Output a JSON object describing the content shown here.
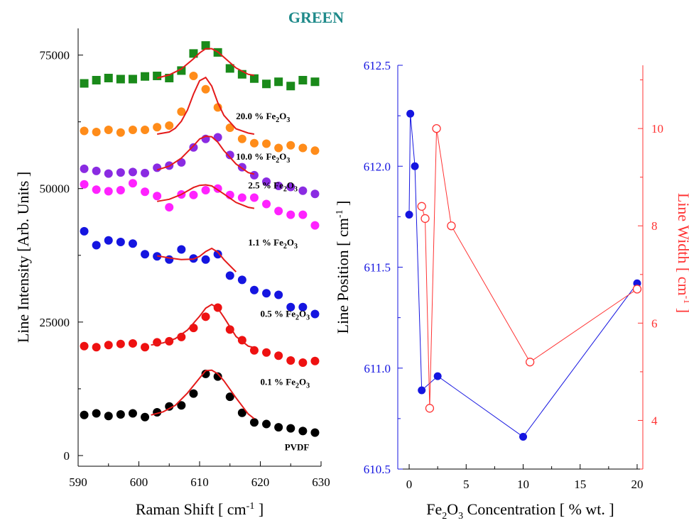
{
  "title": "GREEN",
  "chart_data": [
    {
      "type": "scatter",
      "xlabel": "Raman Shift [ cm⁻¹ ]",
      "ylabel": "Line Intensity [Arb. Units ]",
      "xlim": [
        590,
        630
      ],
      "ylim": [
        -2000,
        80000
      ],
      "xticks": [
        "590",
        "600",
        "610",
        "620",
        "630"
      ],
      "yticks": [
        "0",
        "25000",
        "50000",
        "75000"
      ],
      "grid": false,
      "series": [
        {
          "name": "PVDF",
          "color": "#000000",
          "marker": "circle",
          "x": [
            591,
            593,
            595,
            597,
            599,
            601,
            603,
            605,
            607,
            609,
            611,
            613,
            615,
            617,
            619,
            621,
            623,
            625,
            627,
            629,
            631
          ],
          "y": [
            7600,
            7900,
            7400,
            7700,
            7900,
            7200,
            8100,
            9200,
            9400,
            11600,
            15300,
            14800,
            11000,
            8000,
            6200,
            5900,
            5300,
            5100,
            4600,
            4300,
            4500
          ],
          "fit_x": [
            602,
            604,
            606,
            608,
            610,
            611,
            612,
            613,
            614,
            616,
            618,
            619
          ],
          "fit_y": [
            7600,
            8200,
            9400,
            11700,
            14500,
            15900,
            16000,
            15300,
            14000,
            10800,
            7800,
            6900
          ]
        },
        {
          "name": "0.1 % Fe2O3",
          "color": "#ee1111",
          "marker": "circle",
          "x": [
            591,
            593,
            595,
            597,
            599,
            601,
            603,
            605,
            607,
            609,
            611,
            613,
            615,
            617,
            619,
            621,
            623,
            625,
            627,
            629,
            631
          ],
          "y": [
            20500,
            20300,
            20700,
            20900,
            21000,
            20300,
            21200,
            21400,
            22200,
            23900,
            26000,
            27700,
            23600,
            21600,
            19700,
            19300,
            18700,
            17800,
            17400,
            17700,
            17700
          ],
          "fit_x": [
            602,
            604,
            606,
            608,
            610,
            611,
            612,
            613,
            614,
            616,
            618,
            619
          ],
          "fit_y": [
            20700,
            21100,
            21900,
            23500,
            26100,
            27600,
            28300,
            27600,
            25900,
            22300,
            20500,
            20200
          ]
        },
        {
          "name": "0.5 % Fe2O3",
          "color": "#1515e0",
          "marker": "circle",
          "x": [
            591,
            593,
            595,
            597,
            599,
            601,
            603,
            605,
            607,
            609,
            611,
            613,
            615,
            617,
            619,
            621,
            623,
            625,
            627,
            629,
            631
          ],
          "y": [
            42000,
            39400,
            40300,
            40000,
            39700,
            37700,
            37300,
            36700,
            38600,
            36900,
            36700,
            37700,
            33700,
            32900,
            31000,
            30400,
            30100,
            27800,
            27800,
            26500,
            27300
          ],
          "fit_x": [
            603,
            605,
            607,
            609,
            610,
            611,
            612,
            613,
            614,
            616
          ],
          "fit_y": [
            37400,
            37000,
            36700,
            36800,
            37300,
            38200,
            38800,
            38100,
            36700,
            34400
          ]
        },
        {
          "name": "1.1 % Fe2O3",
          "color": "#ff22ff",
          "marker": "circle",
          "x": [
            591,
            593,
            595,
            597,
            599,
            601,
            603,
            605,
            607,
            609,
            611,
            613,
            615,
            617,
            619,
            621,
            623,
            625,
            627,
            629,
            631
          ],
          "y": [
            50800,
            49800,
            49500,
            49700,
            51000,
            49400,
            48600,
            46500,
            48900,
            48800,
            49700,
            50000,
            48800,
            48300,
            48300,
            47100,
            45800,
            45100,
            45100,
            43100,
            43600
          ],
          "fit_x": [
            603,
            605,
            607,
            609,
            610,
            611,
            612,
            614,
            616,
            618,
            619
          ],
          "fit_y": [
            47600,
            48000,
            48900,
            50200,
            50600,
            50700,
            50500,
            49000,
            47400,
            46500,
            46300
          ]
        },
        {
          "name": "2.5 % Fe2O3",
          "color": "#8a2be2",
          "marker": "circle",
          "x": [
            591,
            593,
            595,
            597,
            599,
            601,
            603,
            605,
            607,
            609,
            611,
            613,
            615,
            617,
            619,
            621,
            623,
            625,
            627,
            629,
            631
          ],
          "y": [
            53700,
            53300,
            52800,
            53000,
            53100,
            52900,
            53900,
            54300,
            54900,
            57700,
            59300,
            59600,
            56300,
            54000,
            52500,
            51300,
            50500,
            50300,
            49600,
            49000,
            49700
          ],
          "fit_x": [
            603,
            605,
            607,
            609,
            610,
            611,
            612,
            613,
            614,
            616,
            618,
            619
          ],
          "fit_y": [
            53500,
            54200,
            55700,
            58000,
            59300,
            59800,
            59700,
            58700,
            57100,
            54600,
            53000,
            52700
          ]
        },
        {
          "name": "10.0 % Fe2O3",
          "color": "#ff8c1a",
          "marker": "circle",
          "x": [
            591,
            593,
            595,
            597,
            599,
            601,
            603,
            605,
            607,
            609,
            611,
            613,
            615,
            617,
            619,
            621,
            623,
            625,
            627,
            629,
            631
          ],
          "y": [
            60800,
            60600,
            61000,
            60500,
            61000,
            61000,
            61500,
            61800,
            64400,
            71100,
            68600,
            65200,
            61400,
            59300,
            58500,
            58400,
            57600,
            58100,
            57600,
            57100,
            57200
          ],
          "fit_x": [
            603,
            605,
            606,
            607,
            608,
            609,
            610,
            611,
            612,
            613,
            614,
            616,
            618,
            619
          ],
          "fit_y": [
            60200,
            60600,
            61300,
            62600,
            64700,
            67700,
            70200,
            70800,
            69200,
            66100,
            63700,
            61200,
            60400,
            60200
          ]
        },
        {
          "name": "20.0 % Fe2O3",
          "color": "#1a8a1a",
          "marker": "square",
          "x": [
            591,
            593,
            595,
            597,
            599,
            601,
            603,
            605,
            607,
            609,
            611,
            613,
            615,
            617,
            619,
            621,
            623,
            625,
            627,
            629,
            631
          ],
          "y": [
            69700,
            70300,
            70700,
            70500,
            70500,
            71000,
            71100,
            70700,
            72100,
            75300,
            76800,
            75500,
            72500,
            71400,
            70600,
            69600,
            70000,
            69200,
            70300,
            70000,
            70100
          ],
          "fit_x": [
            603,
            605,
            607,
            609,
            610,
            611,
            612,
            613,
            614,
            616,
            618,
            619
          ],
          "fit_y": [
            70700,
            71300,
            72400,
            74300,
            75400,
            76200,
            76200,
            75600,
            74600,
            72600,
            71400,
            71200
          ]
        }
      ],
      "annotations": [
        {
          "label": "20.0 % Fe",
          "sub1": "2",
          "mid": "O",
          "sub2": "3",
          "at": [
            616,
            63000
          ]
        },
        {
          "label": "10.0 % Fe",
          "sub1": "2",
          "mid": "O",
          "sub2": "3",
          "at": [
            616,
            55400
          ]
        },
        {
          "label": "2.5 % Fe",
          "sub1": "2",
          "mid": "O",
          "sub2": "3",
          "at": [
            618,
            50000
          ]
        },
        {
          "label": "1.1 % Fe",
          "sub1": "2",
          "mid": "O",
          "sub2": "3",
          "at": [
            618,
            39300
          ]
        },
        {
          "label": "0.5 % Fe",
          "sub1": "2",
          "mid": "O",
          "sub2": "3",
          "at": [
            620,
            26000
          ]
        },
        {
          "label": "0.1 % Fe",
          "sub1": "2",
          "mid": "O",
          "sub2": "3",
          "at": [
            620,
            13200
          ]
        },
        {
          "label": "PVDF",
          "sub1": "",
          "mid": "",
          "sub2": "",
          "at": [
            624,
            1000
          ]
        }
      ]
    },
    {
      "type": "line",
      "xlabel": "Fe₂O₃ Concentration [ % wt. ]",
      "ylabel": "Line Position [ cm⁻¹ ]",
      "y2label": "Line Width [ cm⁻¹ ]",
      "xlim": [
        -1,
        20.5
      ],
      "ylim": [
        610.5,
        612.5
      ],
      "y2lim": [
        3,
        11.3
      ],
      "xticks": [
        "0",
        "5",
        "10",
        "15",
        "20"
      ],
      "yticks": [
        "610.5",
        "611.0",
        "611.5",
        "612.0",
        "612.5"
      ],
      "y2ticks": [
        "4",
        "6",
        "8",
        "10"
      ],
      "grid": false,
      "series": [
        {
          "name": "Line Position",
          "color": "#1515e0",
          "marker": "filled-circle",
          "axis": "left",
          "x": [
            0,
            0.1,
            0.5,
            1.1,
            2.5,
            10,
            20
          ],
          "y": [
            611.76,
            612.26,
            612.0,
            610.89,
            610.96,
            610.66,
            611.42
          ]
        },
        {
          "name": "Line Width",
          "color": "#ff3333",
          "marker": "open-circle",
          "axis": "right",
          "x": [
            1.1,
            1.4,
            1.8,
            2.4,
            3.7,
            10.6,
            20
          ],
          "y": [
            8.4,
            8.15,
            4.25,
            10.0,
            8.0,
            5.2,
            6.7
          ]
        }
      ]
    }
  ]
}
